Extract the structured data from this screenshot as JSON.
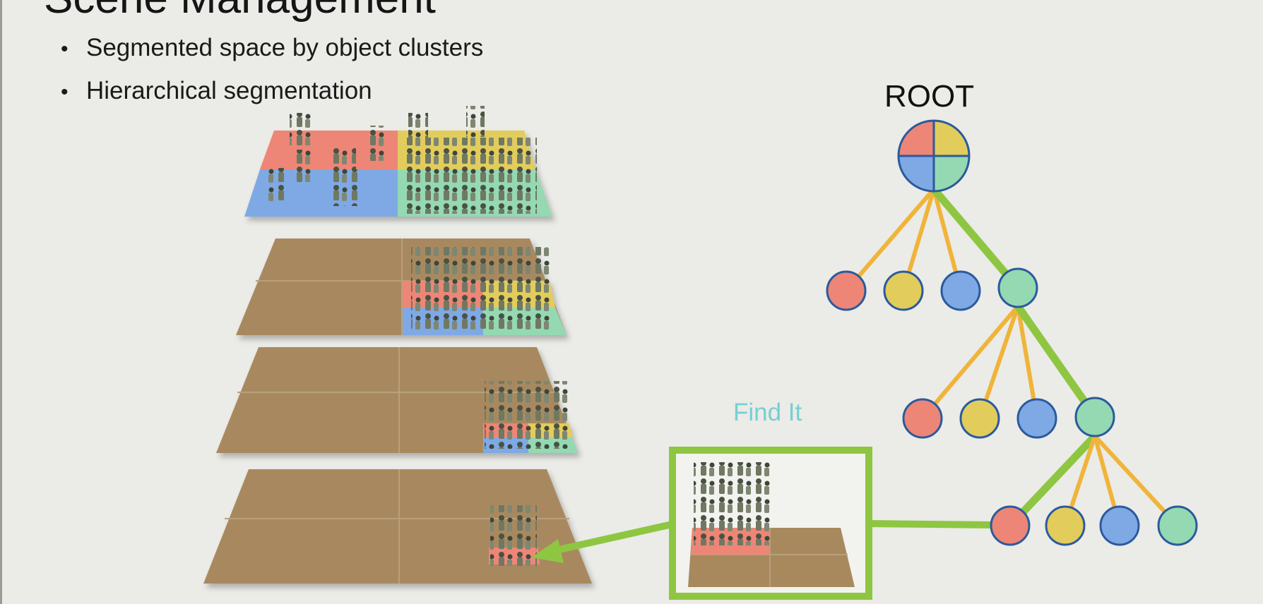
{
  "slide": {
    "title": "Scene Management",
    "bullets": [
      "Segmented space by object clusters",
      "Hierarchical segmentation"
    ]
  },
  "tree": {
    "root_label": "ROOT",
    "levels": [
      [
        "red",
        "yellow",
        "blue",
        "green"
      ],
      [
        "red",
        "yellow",
        "blue",
        "green"
      ],
      [
        "red",
        "yellow",
        "blue",
        "green"
      ]
    ]
  },
  "callout": {
    "label": "Find It"
  },
  "colors": {
    "red": "#ed8676",
    "yellow": "#e2cc5b",
    "blue": "#7fa9e4",
    "green": "#94d9b2",
    "ground": "#a8895e",
    "highlight": "#8ec642",
    "edge": "#f0b43a",
    "node_stroke": "#2b5a9c",
    "find_text": "#76cfd2"
  }
}
